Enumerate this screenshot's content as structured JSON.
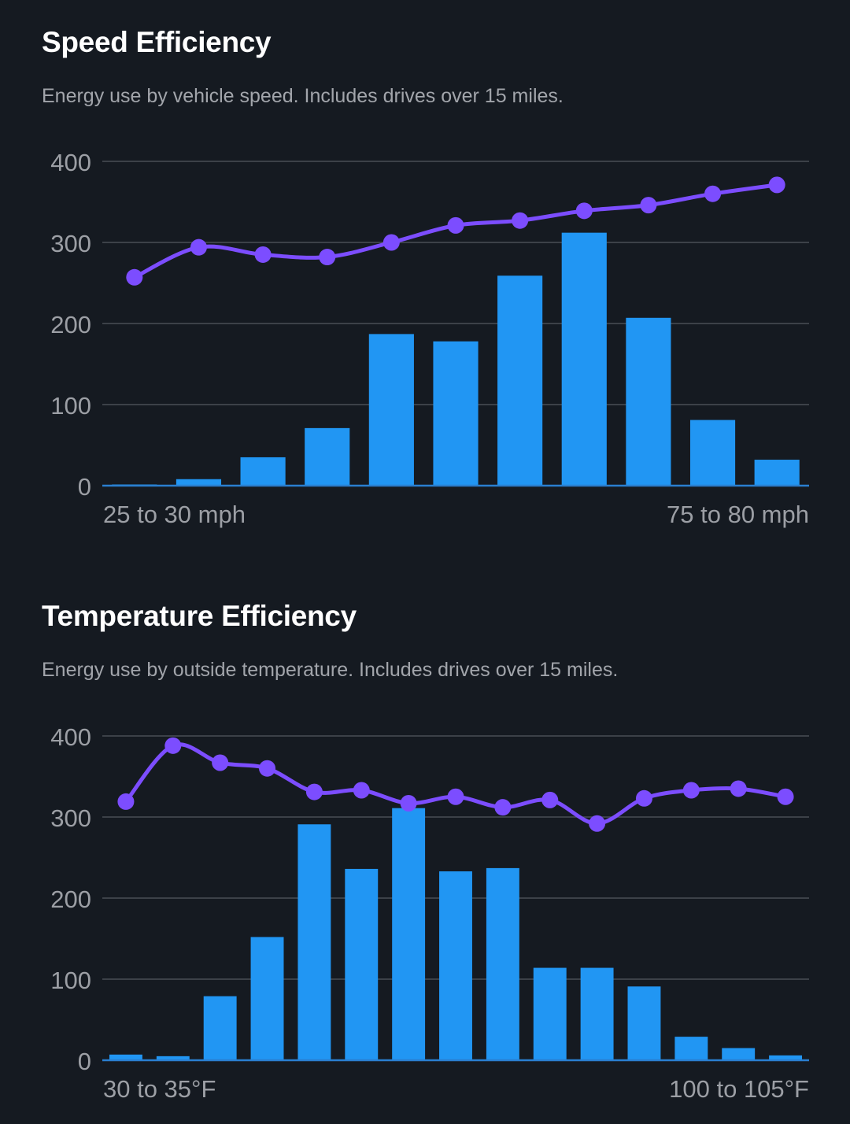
{
  "charts": [
    {
      "title": "Speed Efficiency",
      "subtitle": "Energy use by vehicle speed. Includes drives over 15 miles.",
      "colors": {
        "bar": "#2196f3",
        "line": "#7c4dff",
        "grid": "#4a4e55",
        "baseline": "#2a7fd0",
        "background": "#151a21"
      }
    },
    {
      "title": "Temperature Efficiency",
      "subtitle": "Energy use by outside temperature. Includes drives over 15 miles.",
      "colors": {
        "bar": "#2196f3",
        "line": "#7c4dff",
        "grid": "#4a4e55",
        "baseline": "#2a7fd0",
        "background": "#151a21"
      }
    }
  ],
  "chart_data": [
    {
      "type": "bar",
      "title": "Speed Efficiency",
      "subtitle": "Energy use by vehicle speed. Includes drives over 15 miles.",
      "ylim": [
        0,
        400
      ],
      "yticks": [
        0,
        100,
        200,
        300,
        400
      ],
      "grid": true,
      "x_first_label": "25 to 30 mph",
      "x_last_label": "75 to 80 mph",
      "bar_values": [
        1,
        8,
        35,
        71,
        187,
        178,
        259,
        312,
        207,
        81,
        32
      ],
      "line_values": [
        257,
        294,
        285,
        282,
        300,
        321,
        327,
        339,
        346,
        360,
        371
      ]
    },
    {
      "type": "bar",
      "title": "Temperature Efficiency",
      "subtitle": "Energy use by outside temperature. Includes drives over 15 miles.",
      "ylim": [
        0,
        400
      ],
      "yticks": [
        0,
        100,
        200,
        300,
        400
      ],
      "grid": true,
      "x_first_label": "30 to 35°F",
      "x_last_label": "100 to 105°F",
      "bar_values": [
        7,
        5,
        79,
        152,
        291,
        236,
        311,
        233,
        237,
        114,
        114,
        91,
        29,
        15,
        6
      ],
      "line_values": [
        319,
        388,
        367,
        360,
        331,
        333,
        317,
        325,
        312,
        321,
        292,
        323,
        333,
        335,
        325
      ]
    }
  ]
}
